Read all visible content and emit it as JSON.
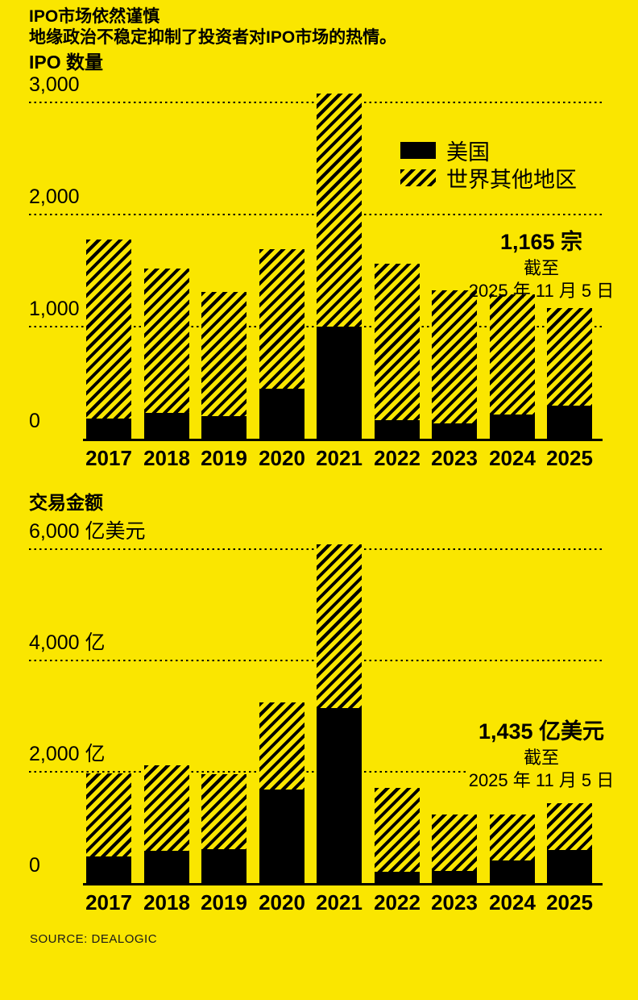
{
  "header": {
    "title": "IPO市场依然谨慎",
    "subtitle": "地缘政治不稳定抑制了投资者对IPO市场的热情。"
  },
  "legend": {
    "items": [
      {
        "label": "美国",
        "swatch": "solid-black"
      },
      {
        "label": "世界其他地区",
        "swatch": "diagonal-hatch"
      }
    ]
  },
  "source": "SOURCE: DEALOGIC",
  "colors": {
    "background": "#FAE600",
    "bar": "#000000",
    "text": "#000000"
  },
  "chart_data": [
    {
      "type": "bar",
      "stacked": true,
      "title": "IPO 数量",
      "categories": [
        "2017",
        "2018",
        "2019",
        "2020",
        "2021",
        "2022",
        "2023",
        "2024",
        "2025"
      ],
      "series": [
        {
          "name": "美国",
          "values": [
            180,
            230,
            200,
            445,
            1000,
            165,
            135,
            215,
            295
          ]
        },
        {
          "name": "世界其他地区",
          "values": [
            1600,
            1290,
            1110,
            1245,
            2080,
            1395,
            1185,
            1070,
            870
          ]
        }
      ],
      "yticks": [
        {
          "value": 3000,
          "label": "3,000"
        },
        {
          "value": 2000,
          "label": "2,000"
        },
        {
          "value": 1000,
          "label": "1,000"
        },
        {
          "value": 0,
          "label": "0"
        }
      ],
      "ylim": [
        0,
        3000
      ],
      "grid": "dotted-horizontal",
      "legend_position": "upper-right",
      "annotation": {
        "value": "1,165 宗",
        "line2": "截至",
        "line3": "2025 年 11 月 5 日"
      }
    },
    {
      "type": "bar",
      "stacked": true,
      "title": "交易金额",
      "categories": [
        "2017",
        "2018",
        "2019",
        "2020",
        "2021",
        "2022",
        "2023",
        "2024",
        "2025"
      ],
      "series": [
        {
          "name": "美国",
          "values": [
            475,
            580,
            615,
            1680,
            3150,
            205,
            220,
            405,
            590
          ]
        },
        {
          "name": "世界其他地区",
          "values": [
            1495,
            1535,
            1355,
            1565,
            2940,
            1510,
            1010,
            830,
            845
          ]
        }
      ],
      "yticks": [
        {
          "value": 6000,
          "label": "6,000 亿美元"
        },
        {
          "value": 4000,
          "label": "4,000 亿"
        },
        {
          "value": 2000,
          "label": "2,000 亿"
        },
        {
          "value": 0,
          "label": "0"
        }
      ],
      "ylim": [
        0,
        6000
      ],
      "grid": "dotted-horizontal",
      "annotation": {
        "value": "1,435 亿美元",
        "line2": "截至",
        "line3": "2025 年 11 月 5 日"
      }
    }
  ]
}
